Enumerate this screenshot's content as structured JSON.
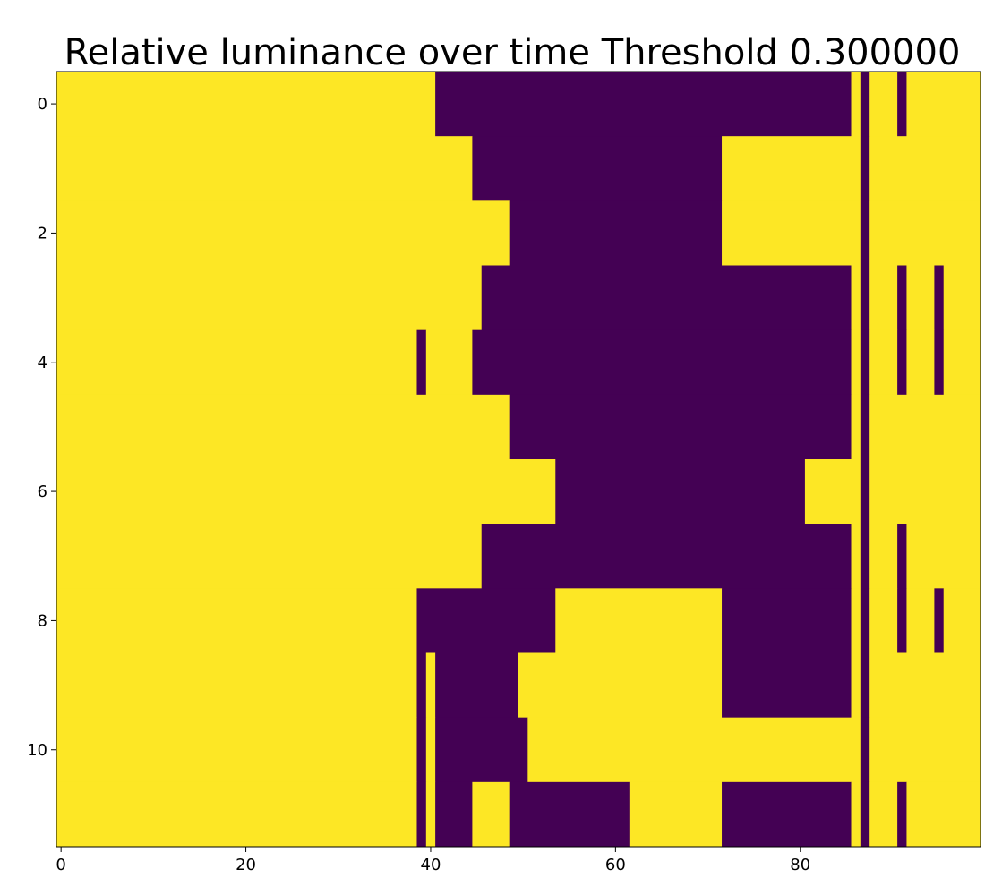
{
  "chart_data": {
    "type": "heatmap",
    "title": "Relative luminance over time Threshold 0.300000",
    "xlabel": "",
    "ylabel": "",
    "n_rows": 12,
    "n_cols": 100,
    "x_ticks": [
      0,
      20,
      40,
      60,
      80
    ],
    "y_ticks": [
      0,
      2,
      4,
      6,
      8,
      10
    ],
    "x_tick_labels": [
      "0",
      "20",
      "40",
      "60",
      "80"
    ],
    "y_tick_labels": [
      "0",
      "2",
      "4",
      "6",
      "8",
      "10"
    ],
    "value_colors": {
      "0": "#440154",
      "1": "#fde725"
    },
    "grid": false,
    "legend": "none",
    "rows": [
      [
        [
          0,
          40,
          1
        ],
        [
          41,
          85,
          0
        ],
        [
          86,
          86,
          1
        ],
        [
          87,
          87,
          0
        ],
        [
          88,
          90,
          1
        ],
        [
          91,
          91,
          0
        ],
        [
          92,
          99,
          1
        ]
      ],
      [
        [
          0,
          44,
          1
        ],
        [
          45,
          71,
          0
        ],
        [
          72,
          86,
          1
        ],
        [
          87,
          87,
          0
        ],
        [
          88,
          99,
          1
        ]
      ],
      [
        [
          0,
          48,
          1
        ],
        [
          49,
          71,
          0
        ],
        [
          72,
          86,
          1
        ],
        [
          87,
          87,
          0
        ],
        [
          88,
          99,
          1
        ]
      ],
      [
        [
          0,
          45,
          1
        ],
        [
          46,
          85,
          0
        ],
        [
          86,
          86,
          1
        ],
        [
          87,
          87,
          0
        ],
        [
          88,
          90,
          1
        ],
        [
          91,
          91,
          0
        ],
        [
          92,
          94,
          1
        ],
        [
          95,
          95,
          0
        ],
        [
          96,
          99,
          1
        ]
      ],
      [
        [
          0,
          38,
          1
        ],
        [
          39,
          39,
          0
        ],
        [
          40,
          44,
          1
        ],
        [
          45,
          85,
          0
        ],
        [
          86,
          86,
          1
        ],
        [
          87,
          87,
          0
        ],
        [
          88,
          90,
          1
        ],
        [
          91,
          91,
          0
        ],
        [
          92,
          94,
          1
        ],
        [
          95,
          95,
          0
        ],
        [
          96,
          99,
          1
        ]
      ],
      [
        [
          0,
          48,
          1
        ],
        [
          49,
          85,
          0
        ],
        [
          86,
          86,
          1
        ],
        [
          87,
          87,
          0
        ],
        [
          88,
          99,
          1
        ]
      ],
      [
        [
          0,
          53,
          1
        ],
        [
          54,
          80,
          0
        ],
        [
          81,
          86,
          1
        ],
        [
          87,
          87,
          0
        ],
        [
          88,
          99,
          1
        ]
      ],
      [
        [
          0,
          45,
          1
        ],
        [
          46,
          85,
          0
        ],
        [
          86,
          86,
          1
        ],
        [
          87,
          87,
          0
        ],
        [
          88,
          90,
          1
        ],
        [
          91,
          91,
          0
        ],
        [
          92,
          99,
          1
        ]
      ],
      [
        [
          0,
          38,
          1
        ],
        [
          39,
          53,
          0
        ],
        [
          54,
          71,
          1
        ],
        [
          72,
          85,
          0
        ],
        [
          86,
          86,
          1
        ],
        [
          87,
          87,
          0
        ],
        [
          88,
          90,
          1
        ],
        [
          91,
          91,
          0
        ],
        [
          92,
          94,
          1
        ],
        [
          95,
          95,
          0
        ],
        [
          96,
          99,
          1
        ]
      ],
      [
        [
          0,
          38,
          1
        ],
        [
          39,
          39,
          0
        ],
        [
          40,
          40,
          1
        ],
        [
          41,
          49,
          0
        ],
        [
          50,
          71,
          1
        ],
        [
          72,
          85,
          0
        ],
        [
          86,
          86,
          1
        ],
        [
          87,
          87,
          0
        ],
        [
          88,
          99,
          1
        ]
      ],
      [
        [
          0,
          38,
          1
        ],
        [
          39,
          39,
          0
        ],
        [
          40,
          40,
          1
        ],
        [
          41,
          50,
          0
        ],
        [
          51,
          86,
          1
        ],
        [
          87,
          87,
          0
        ],
        [
          88,
          99,
          1
        ]
      ],
      [
        [
          0,
          38,
          1
        ],
        [
          39,
          39,
          0
        ],
        [
          40,
          40,
          1
        ],
        [
          41,
          44,
          0
        ],
        [
          45,
          48,
          1
        ],
        [
          49,
          61,
          0
        ],
        [
          62,
          71,
          1
        ],
        [
          72,
          85,
          0
        ],
        [
          86,
          86,
          1
        ],
        [
          87,
          87,
          0
        ],
        [
          88,
          90,
          1
        ],
        [
          91,
          91,
          0
        ],
        [
          92,
          99,
          1
        ]
      ]
    ]
  }
}
